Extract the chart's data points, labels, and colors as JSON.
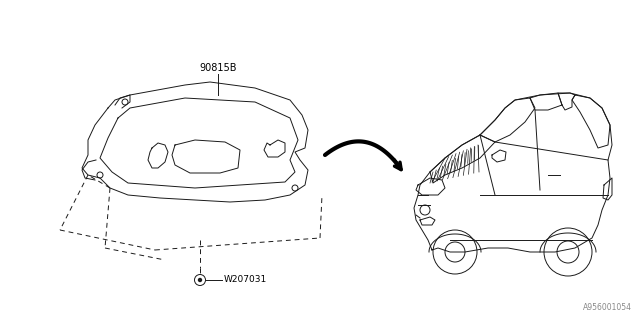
{
  "background_color": "#ffffff",
  "part_label_1": "90815B",
  "part_label_2": "W207031",
  "diagram_id": "A956001054",
  "text_color": "#000000",
  "line_color": "#1a1a1a",
  "dashed_color": "#1a1a1a",
  "arrow_color": "#000000"
}
